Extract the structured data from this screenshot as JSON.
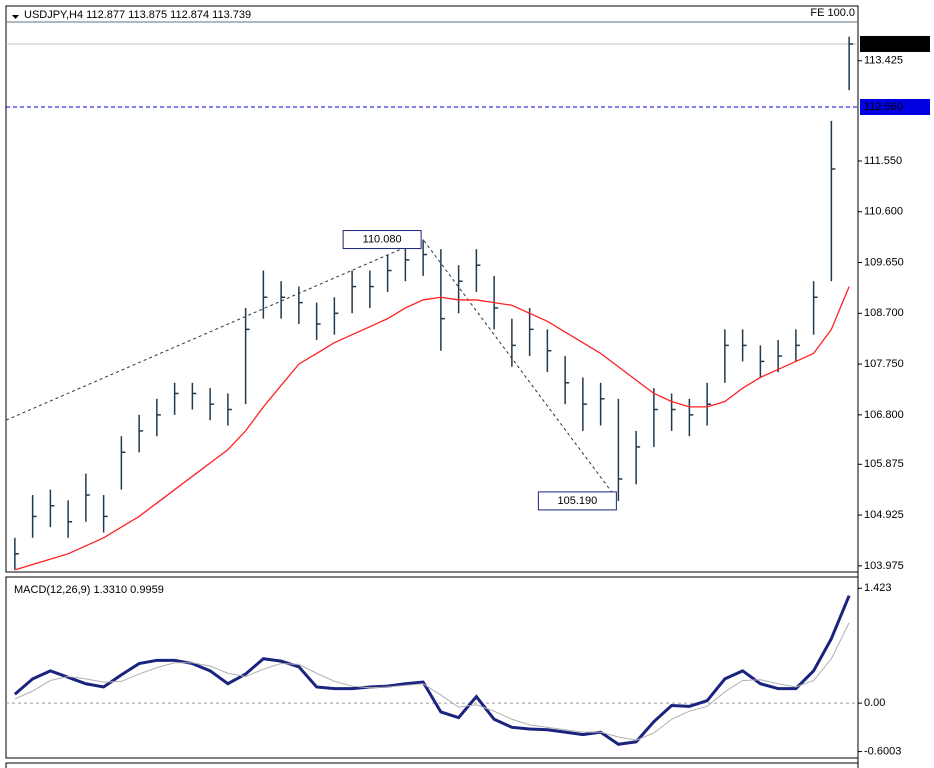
{
  "chart_data": [
    {
      "type": "ohlc",
      "title": "USDJPY,H4  112.877 113.875 112.874 113.739",
      "fe_label": "FE 100.0",
      "color": "#203a4c",
      "high": [
        104.5,
        105.3,
        105.4,
        105.2,
        105.7,
        105.3,
        106.4,
        106.8,
        107.1,
        107.4,
        107.4,
        107.3,
        107.2,
        108.8,
        109.5,
        109.3,
        109.2,
        108.9,
        109.0,
        109.5,
        109.5,
        109.8,
        110.0,
        110.08,
        109.9,
        109.6,
        109.9,
        109.4,
        108.6,
        108.8,
        108.4,
        107.9,
        107.5,
        107.4,
        107.1,
        106.5,
        107.3,
        107.2,
        107.1,
        107.4,
        108.4,
        108.4,
        108.1,
        108.2,
        108.4,
        109.3,
        112.3,
        113.875
      ],
      "low": [
        103.9,
        104.5,
        104.7,
        104.5,
        104.8,
        104.6,
        105.4,
        106.1,
        106.4,
        106.8,
        106.9,
        106.7,
        106.6,
        107.0,
        108.6,
        108.6,
        108.5,
        108.2,
        108.3,
        108.7,
        108.8,
        109.1,
        109.3,
        109.4,
        108.0,
        108.7,
        109.1,
        108.4,
        107.7,
        107.9,
        107.6,
        107.0,
        106.5,
        106.6,
        105.19,
        105.5,
        106.2,
        106.5,
        106.4,
        106.6,
        107.4,
        107.8,
        107.5,
        107.6,
        107.8,
        108.3,
        109.3,
        112.874
      ],
      "close": [
        104.2,
        104.9,
        105.1,
        104.8,
        105.3,
        104.9,
        106.1,
        106.5,
        106.8,
        107.2,
        107.2,
        107.0,
        106.9,
        108.4,
        109.0,
        109.0,
        108.9,
        108.5,
        108.7,
        109.2,
        109.2,
        109.5,
        109.7,
        109.8,
        108.6,
        109.3,
        109.6,
        108.8,
        108.1,
        108.4,
        108.0,
        107.4,
        107.0,
        107.1,
        105.6,
        106.2,
        106.9,
        106.9,
        106.8,
        107.0,
        108.1,
        108.1,
        107.8,
        107.9,
        108.1,
        109.0,
        111.4,
        113.739
      ],
      "series": [
        {
          "color": "#ff2020",
          "values": [
            103.9,
            104.0,
            104.1,
            104.2,
            104.35,
            104.5,
            104.7,
            104.9,
            105.15,
            105.4,
            105.65,
            105.9,
            106.15,
            106.5,
            106.95,
            107.35,
            107.75,
            107.95,
            108.15,
            108.3,
            108.45,
            108.6,
            108.8,
            108.95,
            109.0,
            108.95,
            108.95,
            108.9,
            108.85,
            108.7,
            108.55,
            108.35,
            108.15,
            107.95,
            107.7,
            107.45,
            107.2,
            107.05,
            106.95,
            106.95,
            107.05,
            107.3,
            107.5,
            107.65,
            107.8,
            107.95,
            108.4,
            109.2
          ]
        }
      ],
      "ylim": [
        103.86,
        114.15
      ],
      "yticks": [
        113.425,
        {
          "value": 111.55,
          "label": "111.550"
        },
        {
          "value": 110.6,
          "label": "110.600"
        },
        {
          "value": 109.65,
          "label": "109.650"
        },
        {
          "value": 108.7,
          "label": "108.700"
        },
        {
          "value": 107.75,
          "label": "107.750"
        },
        {
          "value": 106.8,
          "label": "106.800"
        },
        105.875,
        104.925,
        103.975
      ],
      "current_price": 113.739,
      "level": {
        "value": 112.56,
        "label": "112.560",
        "color": "#0000e0"
      },
      "trend_start": 106.7,
      "annotations": [
        {
          "value": 110.08,
          "label": "110.080"
        },
        {
          "value": 105.19,
          "label": "105.190"
        }
      ]
    },
    {
      "type": "line",
      "title": "MACD(12,26,9) 1.3310 0.9959",
      "series": [
        {
          "color": "#1a237e",
          "values": [
            0.11,
            0.3,
            0.4,
            0.32,
            0.24,
            0.2,
            0.35,
            0.49,
            0.53,
            0.53,
            0.49,
            0.4,
            0.24,
            0.36,
            0.55,
            0.52,
            0.45,
            0.2,
            0.18,
            0.18,
            0.2,
            0.21,
            0.24,
            0.26,
            -0.11,
            -0.18,
            0.08,
            -0.2,
            -0.3,
            -0.32,
            -0.33,
            -0.36,
            -0.39,
            -0.36,
            -0.51,
            -0.48,
            -0.23,
            -0.03,
            -0.04,
            0.03,
            0.3,
            0.4,
            0.24,
            0.18,
            0.18,
            0.4,
            0.8,
            1.331
          ]
        },
        {
          "color": "#b0b0b0",
          "values": [
            0.05,
            0.15,
            0.28,
            0.33,
            0.3,
            0.26,
            0.27,
            0.36,
            0.44,
            0.5,
            0.5,
            0.46,
            0.37,
            0.33,
            0.42,
            0.49,
            0.48,
            0.37,
            0.27,
            0.21,
            0.19,
            0.2,
            0.22,
            0.24,
            0.1,
            -0.05,
            -0.02,
            -0.1,
            -0.2,
            -0.27,
            -0.3,
            -0.33,
            -0.36,
            -0.36,
            -0.42,
            -0.46,
            -0.37,
            -0.2,
            -0.1,
            -0.04,
            0.14,
            0.28,
            0.29,
            0.24,
            0.2,
            0.28,
            0.55,
            0.9959
          ]
        }
      ],
      "ylim": [
        -0.68,
        1.55
      ],
      "yticks": [
        1.423,
        {
          "value": 0,
          "label": "0.00"
        },
        -0.6003
      ]
    }
  ]
}
